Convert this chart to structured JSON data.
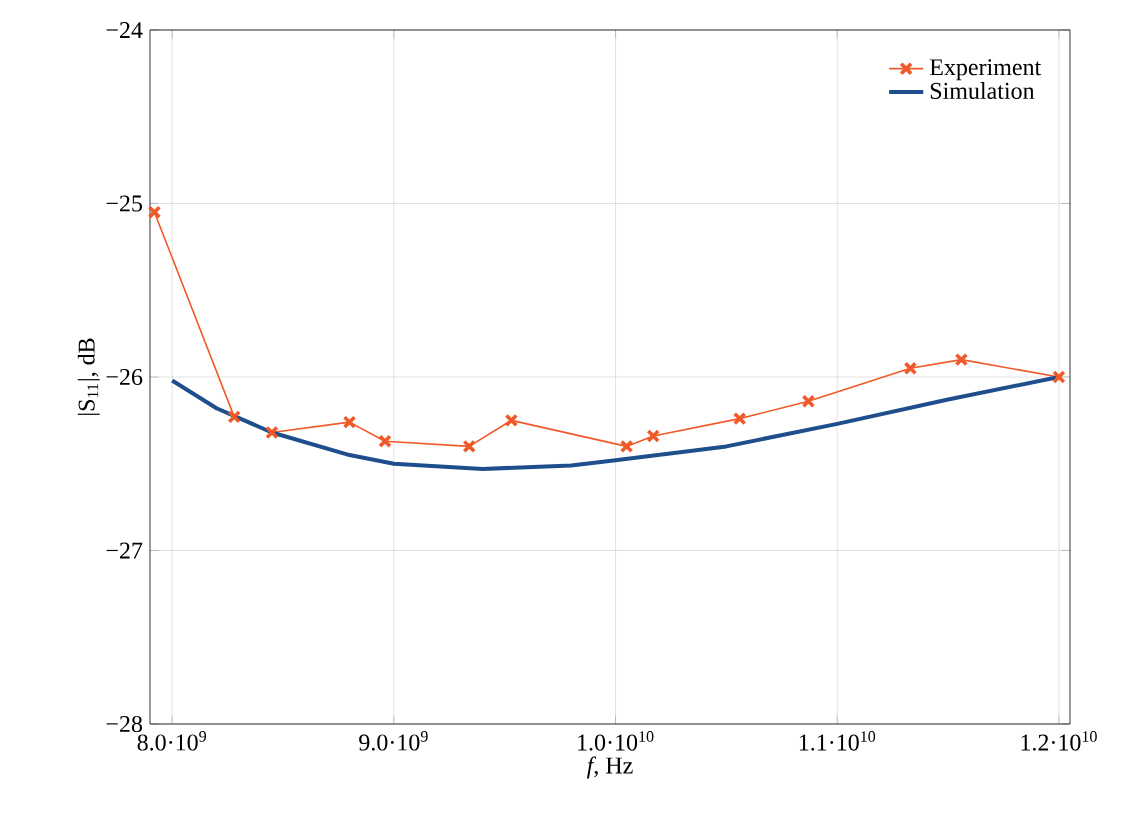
{
  "chart_data": {
    "type": "line",
    "xlabel": "*f*, Hz",
    "ylabel": "|S$_{11}$|, dB",
    "xlim": [
      7900000000.0,
      12050000000.0
    ],
    "ylim": [
      -28,
      -24
    ],
    "xticks": [
      {
        "value": 8000000000.0,
        "label": "8.0·10$^{9}$"
      },
      {
        "value": 9000000000.0,
        "label": "9.0·10$^{9}$"
      },
      {
        "value": 10000000000.0,
        "label": "1.0·10$^{10}$"
      },
      {
        "value": 11000000000.0,
        "label": "1.1·10$^{10}$"
      },
      {
        "value": 12000000000.0,
        "label": "1.2·10$^{10}$"
      }
    ],
    "yticks": [
      {
        "value": -28,
        "label": "−28"
      },
      {
        "value": -27,
        "label": "−27"
      },
      {
        "value": -26,
        "label": "−26"
      },
      {
        "value": -25,
        "label": "−25"
      },
      {
        "value": -24,
        "label": "−24"
      }
    ],
    "grid": true,
    "legend": "top right",
    "series": [
      {
        "name": "Experiment",
        "color": "#f05a28",
        "marker": "cross",
        "x": [
          7920000000.0,
          8280000000.0,
          8450000000.0,
          8800000000.0,
          8960000000.0,
          9340000000.0,
          9530000000.0,
          10050000000.0,
          10170000000.0,
          10560000000.0,
          10870000000.0,
          11330000000.0,
          11560000000.0,
          12000000000.0
        ],
        "values": [
          -25.05,
          -26.23,
          -26.32,
          -26.26,
          -26.37,
          -26.4,
          -26.25,
          -26.4,
          -26.34,
          -26.24,
          -26.14,
          -25.95,
          -25.9,
          -26.0
        ]
      },
      {
        "name": "Simulation",
        "color": "#1f4e8c",
        "marker": "none",
        "x": [
          8000000000.0,
          8200000000.0,
          8450000000.0,
          8800000000.0,
          9000000000.0,
          9400000000.0,
          9800000000.0,
          10000000000.0,
          10500000000.0,
          11000000000.0,
          11500000000.0,
          12000000000.0
        ],
        "values": [
          -26.02,
          -26.18,
          -26.32,
          -26.45,
          -26.5,
          -26.53,
          -26.51,
          -26.48,
          -26.4,
          -26.27,
          -26.13,
          -26.0
        ]
      }
    ]
  }
}
